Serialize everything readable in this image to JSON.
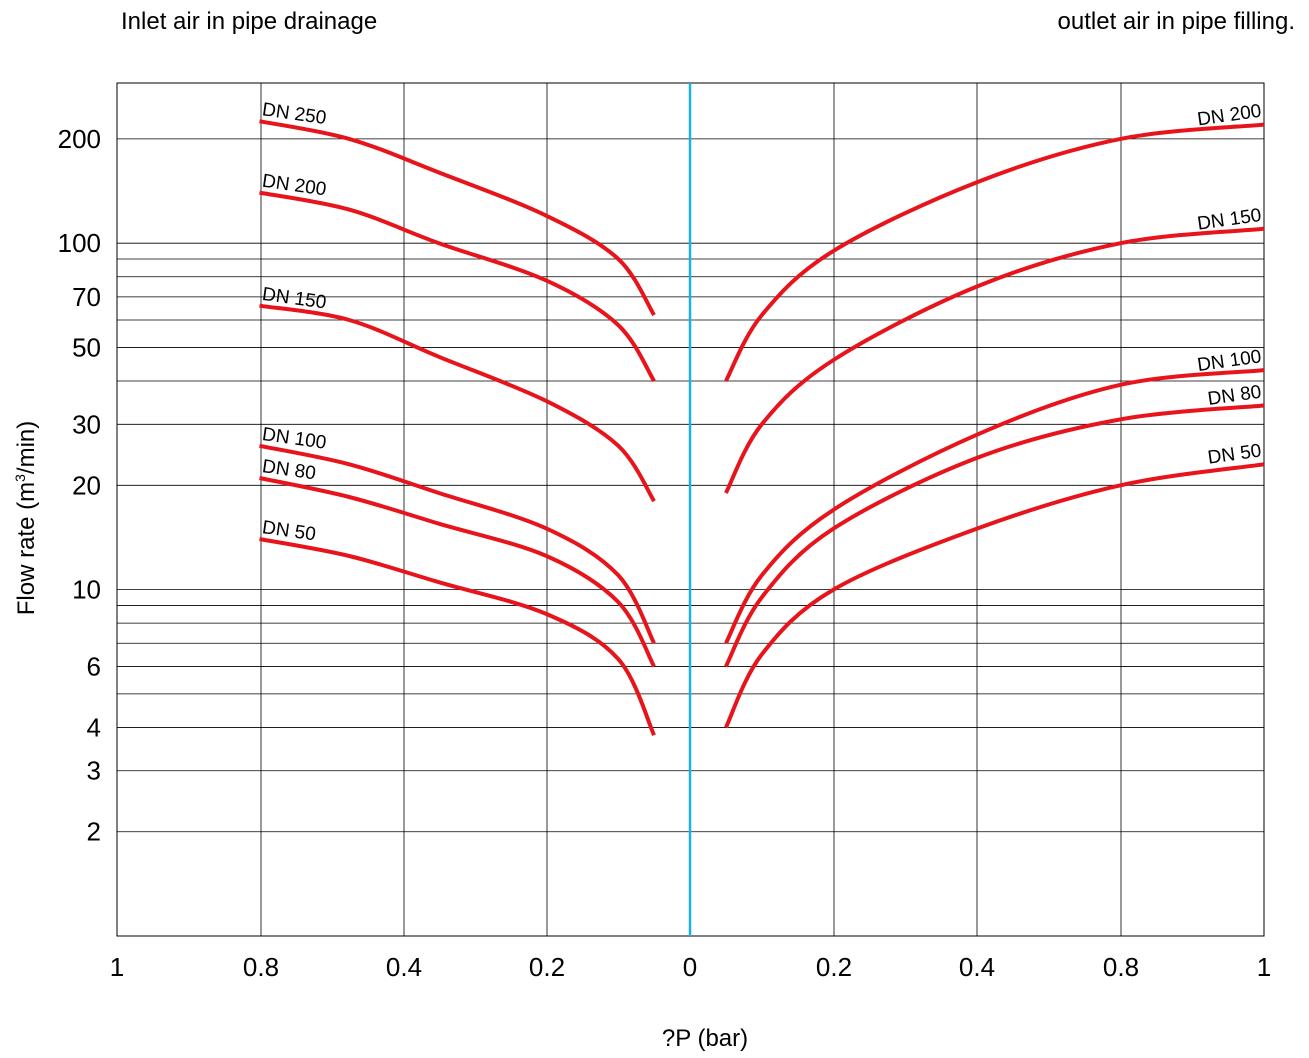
{
  "chart_data": {
    "type": "line",
    "annotations": {
      "left": "Inlet air in pipe drainage",
      "right": "outlet air in pipe filling."
    },
    "xlabel": "?P (bar)",
    "ylabel_prefix": "Flow rate (m",
    "ylabel_sup": "3",
    "ylabel_suffix": "/min)",
    "x_tick_labels": [
      "1",
      "0.8",
      "0.4",
      "0.2",
      "0",
      "0.2",
      "0.4",
      "0.8",
      "1"
    ],
    "y_ticks": [
      2,
      3,
      4,
      6,
      10,
      20,
      30,
      50,
      70,
      100,
      200
    ],
    "y_tick_labels": [
      "2",
      "3",
      "4",
      "6",
      "10",
      "20",
      "30",
      "50",
      "70",
      "100",
      "200"
    ],
    "ylim": [
      1,
      300
    ],
    "y_scale": "log",
    "grid": true,
    "curve_color": "#e8141b",
    "center_line_color": "#1ab0e8",
    "series": [
      {
        "name": "DN 250",
        "side": "left",
        "points": [
          [
            0.8,
            225
          ],
          [
            0.55,
            200
          ],
          [
            0.35,
            160
          ],
          [
            0.2,
            120
          ],
          [
            0.1,
            90
          ],
          [
            0.05,
            62
          ]
        ]
      },
      {
        "name": "DN 200",
        "side": "left",
        "points": [
          [
            0.8,
            140
          ],
          [
            0.55,
            125
          ],
          [
            0.35,
            100
          ],
          [
            0.2,
            78
          ],
          [
            0.1,
            58
          ],
          [
            0.05,
            40
          ]
        ]
      },
      {
        "name": "DN 150",
        "side": "left",
        "points": [
          [
            0.8,
            66
          ],
          [
            0.55,
            60
          ],
          [
            0.35,
            47
          ],
          [
            0.2,
            35
          ],
          [
            0.1,
            26
          ],
          [
            0.05,
            18
          ]
        ]
      },
      {
        "name": "DN 100",
        "side": "left",
        "points": [
          [
            0.8,
            26
          ],
          [
            0.55,
            23
          ],
          [
            0.35,
            19
          ],
          [
            0.2,
            15
          ],
          [
            0.1,
            11
          ],
          [
            0.05,
            7
          ]
        ]
      },
      {
        "name": "DN 80",
        "side": "left",
        "points": [
          [
            0.8,
            21
          ],
          [
            0.55,
            18.5
          ],
          [
            0.35,
            15.5
          ],
          [
            0.2,
            12.5
          ],
          [
            0.1,
            9.2
          ],
          [
            0.05,
            6
          ]
        ]
      },
      {
        "name": "DN 50",
        "side": "left",
        "points": [
          [
            0.8,
            14
          ],
          [
            0.55,
            12.5
          ],
          [
            0.35,
            10.5
          ],
          [
            0.2,
            8.5
          ],
          [
            0.1,
            6.3
          ],
          [
            0.05,
            3.8
          ]
        ]
      },
      {
        "name": "DN 200",
        "side": "right",
        "points": [
          [
            0.05,
            40
          ],
          [
            0.1,
            62
          ],
          [
            0.2,
            95
          ],
          [
            0.4,
            150
          ],
          [
            0.8,
            200
          ],
          [
            1,
            220
          ]
        ]
      },
      {
        "name": "DN 150",
        "side": "right",
        "points": [
          [
            0.05,
            19
          ],
          [
            0.1,
            30
          ],
          [
            0.2,
            46
          ],
          [
            0.4,
            75
          ],
          [
            0.8,
            100
          ],
          [
            1,
            110
          ]
        ]
      },
      {
        "name": "DN 100",
        "side": "right",
        "points": [
          [
            0.05,
            7
          ],
          [
            0.1,
            11
          ],
          [
            0.2,
            17
          ],
          [
            0.4,
            28
          ],
          [
            0.8,
            39
          ],
          [
            1,
            43
          ]
        ]
      },
      {
        "name": "DN 80",
        "side": "right",
        "points": [
          [
            0.05,
            6
          ],
          [
            0.1,
            9.5
          ],
          [
            0.2,
            15
          ],
          [
            0.4,
            24
          ],
          [
            0.8,
            31
          ],
          [
            1,
            34
          ]
        ]
      },
      {
        "name": "DN 50",
        "side": "right",
        "points": [
          [
            0.05,
            4
          ],
          [
            0.1,
            6.5
          ],
          [
            0.2,
            10
          ],
          [
            0.4,
            15
          ],
          [
            0.8,
            20
          ],
          [
            1,
            23
          ]
        ]
      }
    ]
  }
}
